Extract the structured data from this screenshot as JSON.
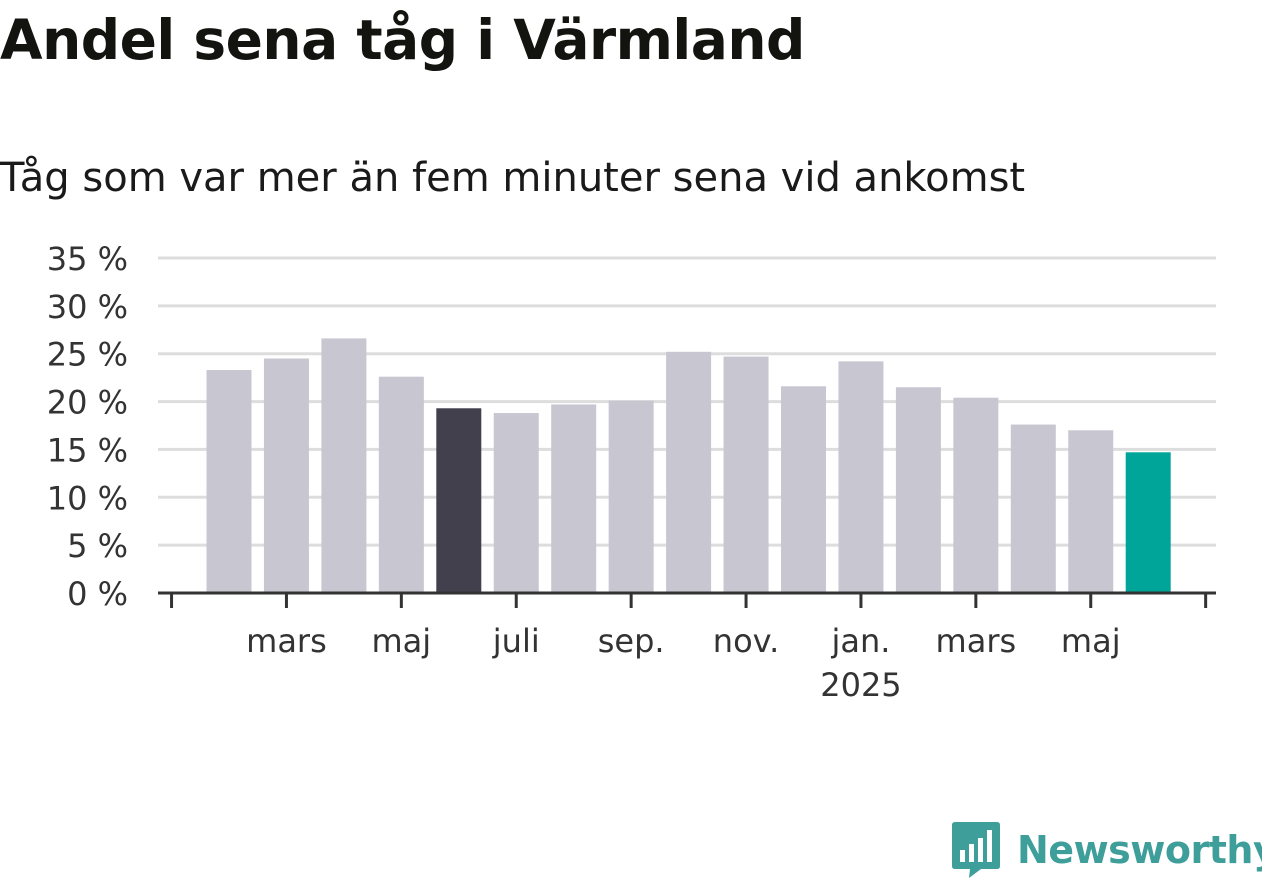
{
  "title": "Andel sena tåg i Värmland",
  "subtitle": "Tåg som var mer än fem minuter sena vid ankomst",
  "brand": {
    "name": "Newsworthy",
    "icon": "bar-chart-speech-icon",
    "color": "#3e9e9a"
  },
  "chart_data": {
    "type": "bar",
    "title": "Andel sena tåg i Värmland",
    "subtitle": "Tåg som var mer än fem minuter sena vid ankomst",
    "xlabel": "",
    "ylabel": "",
    "ylim": [
      0,
      35
    ],
    "y_ticks": [
      0,
      5,
      10,
      15,
      20,
      25,
      30,
      35
    ],
    "y_tick_labels": [
      "0 %",
      "5 %",
      "10 %",
      "15 %",
      "20 %",
      "25 %",
      "30 %",
      "35 %"
    ],
    "grid": true,
    "categories": [
      "2024-02",
      "2024-03",
      "2024-04",
      "2024-05",
      "2024-06",
      "2024-07",
      "2024-08",
      "2024-09",
      "2024-10",
      "2024-11",
      "2024-12",
      "2025-01",
      "2025-02",
      "2025-03",
      "2025-04",
      "2025-05",
      "2025-06"
    ],
    "values": [
      23.3,
      24.5,
      26.6,
      22.6,
      19.3,
      18.8,
      19.7,
      20.1,
      25.2,
      24.7,
      21.6,
      24.2,
      21.5,
      20.4,
      17.6,
      17.0,
      14.7
    ],
    "x_tick_labels": [
      {
        "at": "2024-03",
        "label": "mars",
        "sub": ""
      },
      {
        "at": "2024-05",
        "label": "maj",
        "sub": ""
      },
      {
        "at": "2024-07",
        "label": "juli",
        "sub": ""
      },
      {
        "at": "2024-09",
        "label": "sep.",
        "sub": ""
      },
      {
        "at": "2024-11",
        "label": "nov.",
        "sub": ""
      },
      {
        "at": "2025-01",
        "label": "jan.",
        "sub": "2025"
      },
      {
        "at": "2025-03",
        "label": "mars",
        "sub": ""
      },
      {
        "at": "2025-05",
        "label": "maj",
        "sub": ""
      }
    ],
    "colors": {
      "default": "#c8c7d1",
      "highlight_same_month_last_year": "#43404d",
      "latest": "#00a59a",
      "grid": "#dddddd",
      "axis": "#333333"
    },
    "highlight": {
      "2024-06": "highlight_same_month_last_year",
      "2025-06": "latest"
    }
  }
}
